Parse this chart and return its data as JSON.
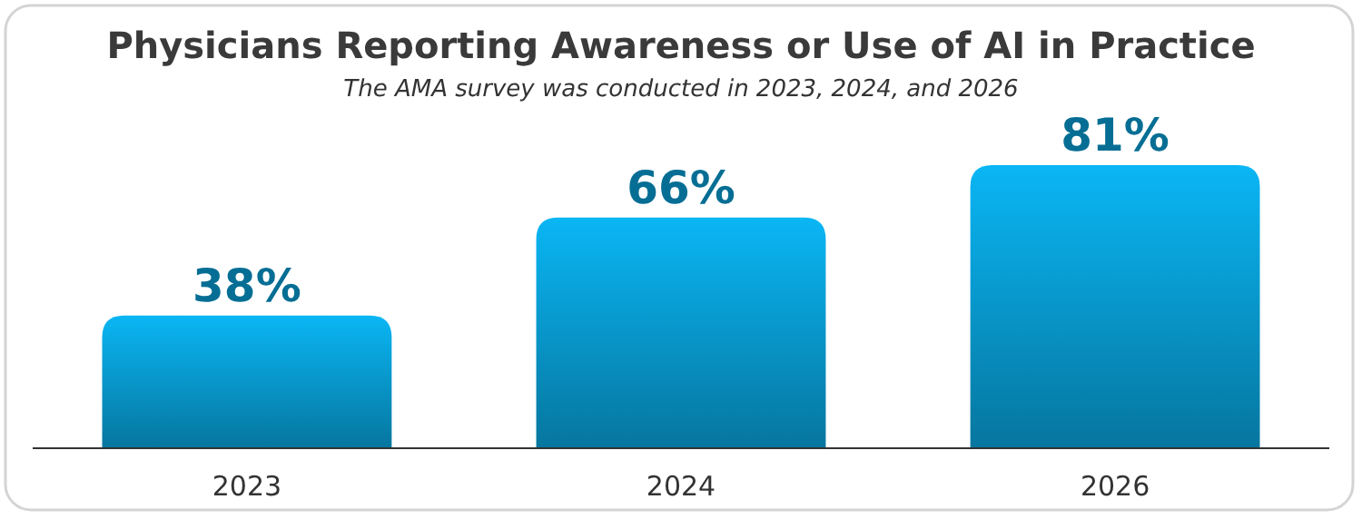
{
  "chart_data": {
    "type": "bar",
    "title": "Physicians Reporting Awareness or Use of AI in Practice",
    "subtitle": "The AMA survey was conducted in 2023, 2024, and 2026",
    "categories": [
      "2023",
      "2024",
      "2026"
    ],
    "values": [
      38,
      66,
      81
    ],
    "color": "#0898cc",
    "value_labels": [
      "38%",
      "66%",
      "81%"
    ]
  }
}
